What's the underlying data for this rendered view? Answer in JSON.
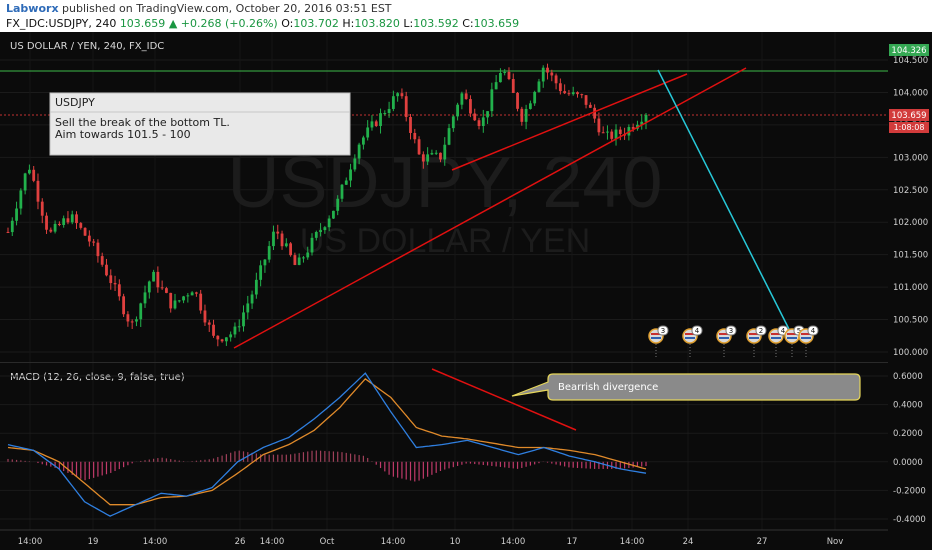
{
  "header": {
    "author": "Labworx",
    "published": " published on TradingView.com, October 20, 2016 03:51 EST",
    "symbol": "FX_IDC:USDJPY, 240",
    "last": "103.659",
    "change": "▲ +0.268 (+0.26%)",
    "o_label": "O:",
    "open": "103.702",
    "h_label": "H:",
    "high": "103.820",
    "l_label": "L:",
    "low": "103.592",
    "c_label": "C:",
    "close": "103.659"
  },
  "chart": {
    "pair_label": "US DOLLAR / YEN, 240, FX_IDC",
    "watermark_symbol": "USDJPY, 240",
    "watermark_name": "US DOLLAR / YEN",
    "price_ticks": [
      "104.500",
      "104.000",
      "103.500",
      "103.000",
      "102.500",
      "102.000",
      "101.500",
      "101.000",
      "100.500",
      "100.000"
    ],
    "hline_price_label": "104.326",
    "last_price_label": "103.659",
    "countdown_label": "1:08:08",
    "x_ticks": [
      "14:00",
      "19",
      "14:00",
      "26",
      "14:00",
      "Oct",
      "14:00",
      "10",
      "14:00",
      "17",
      "14:00",
      "24",
      "27",
      "Nov"
    ],
    "annotation": {
      "title": "USDJPY",
      "line1": "Sell the break of the bottom TL.",
      "line2": "Aim towards 101.5 - 100"
    },
    "event_badges": [
      "3",
      "4",
      "3",
      "2",
      "4",
      "5",
      "4"
    ],
    "colors": {
      "up": "#22b14c",
      "down": "#e0403f",
      "trendline": "#e01010",
      "target": "#27c8d8",
      "macd": "#2f7fe0",
      "signal": "#e08a2a"
    }
  },
  "macd": {
    "title": "MACD (12, 26, close, 9, false, true)",
    "ticks": [
      "0.6000",
      "0.4000",
      "0.2000",
      "0.0000",
      "-0.2000",
      "-0.4000"
    ],
    "callout": "Bearrish divergence"
  },
  "chart_data": {
    "type": "candlestick",
    "symbol": "USDJPY",
    "timeframe": "240",
    "ylim": [
      99.9,
      104.6
    ],
    "price_path": [
      101.85,
      102.9,
      101.8,
      102.1,
      101.7,
      101.1,
      100.4,
      101.2,
      100.7,
      101.0,
      100.2,
      100.3,
      101.0,
      101.9,
      101.3,
      101.8,
      102.3,
      103.2,
      103.6,
      104.0,
      103.0,
      103.0,
      104.0,
      103.5,
      104.4,
      103.6,
      104.4,
      104.0,
      103.9,
      103.3,
      103.4,
      103.7
    ],
    "trendlines": [
      {
        "name": "bottom TL",
        "from": [
          0.29,
          100.05
        ],
        "to": [
          0.98,
          104.4
        ]
      },
      {
        "name": "upper TL",
        "from": [
          0.49,
          102.8
        ],
        "to": [
          0.91,
          104.35
        ]
      }
    ],
    "horizontal_line": 104.326,
    "target_path_to": 100.0,
    "macd_ylim": [
      -0.45,
      0.68
    ],
    "macd_line": [
      0.12,
      0.08,
      -0.05,
      -0.28,
      -0.38,
      -0.3,
      -0.22,
      -0.24,
      -0.18,
      0.0,
      0.1,
      0.17,
      0.3,
      0.45,
      0.62,
      0.35,
      0.1,
      0.12,
      0.15,
      0.1,
      0.05,
      0.1,
      0.04,
      0.0,
      -0.05,
      -0.08
    ],
    "signal_line": [
      0.1,
      0.08,
      0.0,
      -0.15,
      -0.3,
      -0.3,
      -0.25,
      -0.24,
      -0.2,
      -0.08,
      0.05,
      0.12,
      0.22,
      0.38,
      0.58,
      0.45,
      0.24,
      0.18,
      0.16,
      0.13,
      0.1,
      0.1,
      0.08,
      0.05,
      0.0,
      -0.05
    ]
  }
}
